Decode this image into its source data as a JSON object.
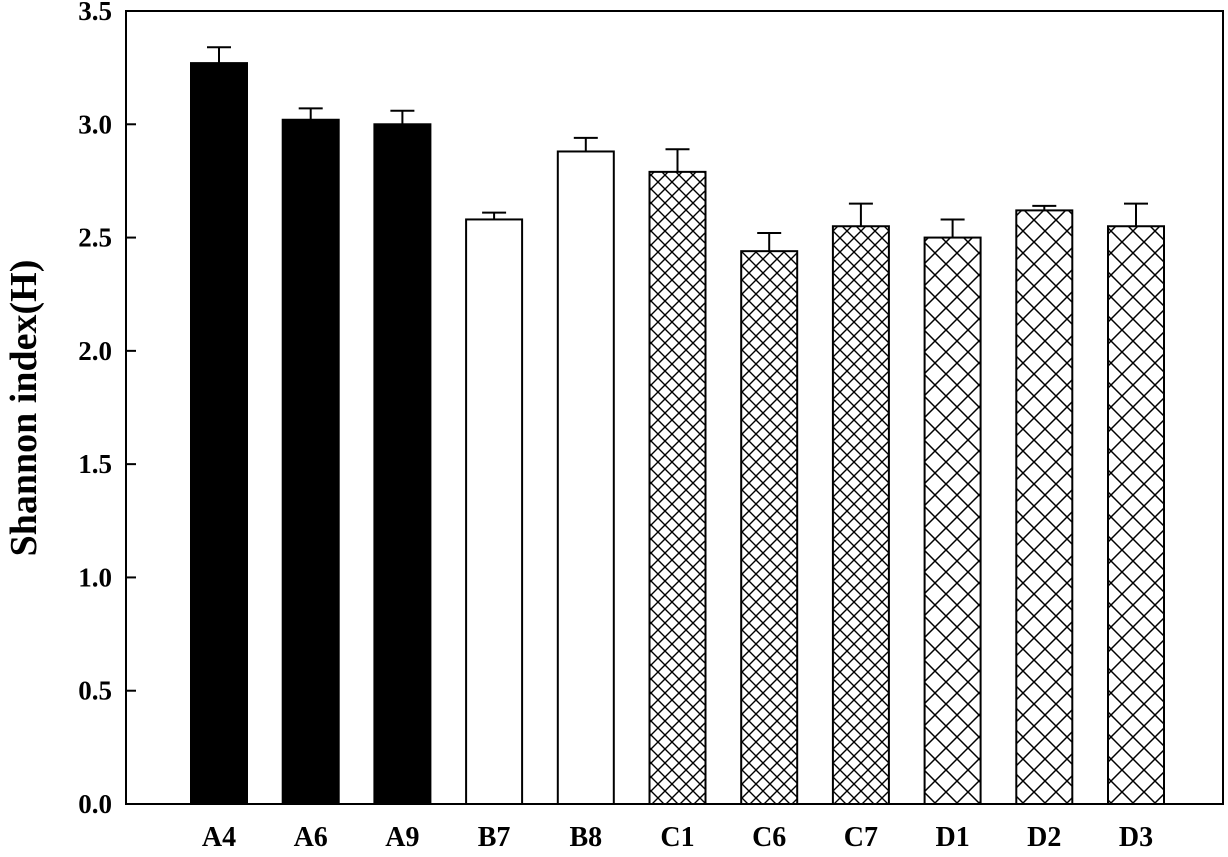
{
  "chart_data": {
    "type": "bar",
    "title": "",
    "xlabel": "",
    "ylabel": "Shannon index(H)",
    "ylim": [
      0,
      3.5
    ],
    "yticks": [
      "0.0",
      "0.5",
      "1.0",
      "1.5",
      "2.0",
      "2.5",
      "3.0",
      "3.5"
    ],
    "grid": false,
    "legend": "none",
    "categories": [
      "A4",
      "A6",
      "A9",
      "B7",
      "B8",
      "C1",
      "C6",
      "C7",
      "D1",
      "D2",
      "D3"
    ],
    "values": [
      3.27,
      3.02,
      3.0,
      2.58,
      2.88,
      2.79,
      2.44,
      2.55,
      2.5,
      2.62,
      2.55
    ],
    "errors": [
      0.07,
      0.05,
      0.06,
      0.03,
      0.06,
      0.1,
      0.08,
      0.1,
      0.08,
      0.02,
      0.1
    ],
    "fills": [
      "solid-black",
      "solid-black",
      "solid-black",
      "white",
      "white",
      "fine-crosshatch",
      "fine-crosshatch",
      "fine-crosshatch",
      "coarse-crosshatch",
      "coarse-crosshatch",
      "coarse-crosshatch"
    ],
    "colors": {
      "ink": "#000000",
      "background": "#ffffff"
    }
  }
}
